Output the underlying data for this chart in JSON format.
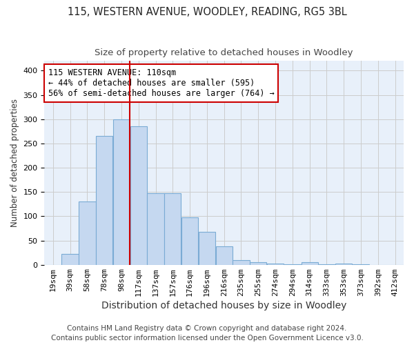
{
  "title1": "115, WESTERN AVENUE, WOODLEY, READING, RG5 3BL",
  "title2": "Size of property relative to detached houses in Woodley",
  "xlabel": "Distribution of detached houses by size in Woodley",
  "ylabel": "Number of detached properties",
  "footnote1": "Contains HM Land Registry data © Crown copyright and database right 2024.",
  "footnote2": "Contains public sector information licensed under the Open Government Licence v3.0.",
  "bar_labels": [
    "19sqm",
    "39sqm",
    "58sqm",
    "78sqm",
    "98sqm",
    "117sqm",
    "137sqm",
    "157sqm",
    "176sqm",
    "196sqm",
    "216sqm",
    "235sqm",
    "255sqm",
    "274sqm",
    "294sqm",
    "314sqm",
    "333sqm",
    "353sqm",
    "373sqm",
    "392sqm",
    "412sqm"
  ],
  "bar_values": [
    0,
    22,
    130,
    265,
    300,
    285,
    148,
    148,
    98,
    68,
    38,
    9,
    5,
    2,
    1,
    5,
    1,
    2,
    1,
    0,
    0
  ],
  "bar_color": "#c5d8f0",
  "bar_edgecolor": "#7aabd4",
  "bin_width": 19,
  "vline_color": "#cc0000",
  "vline_x": 117,
  "annotation_text": "115 WESTERN AVENUE: 110sqm\n← 44% of detached houses are smaller (595)\n56% of semi-detached houses are larger (764) →",
  "annotation_box_color": "#ffffff",
  "annotation_box_edgecolor": "#cc0000",
  "ylim": [
    0,
    420
  ],
  "yticks": [
    0,
    50,
    100,
    150,
    200,
    250,
    300,
    350,
    400
  ],
  "grid_color": "#cccccc",
  "bg_color": "#e8f0fa",
  "title1_fontsize": 10.5,
  "title2_fontsize": 9.5,
  "xlabel_fontsize": 10,
  "ylabel_fontsize": 8.5,
  "tick_fontsize": 8,
  "annotation_fontsize": 8.5,
  "footnote_fontsize": 7.5
}
